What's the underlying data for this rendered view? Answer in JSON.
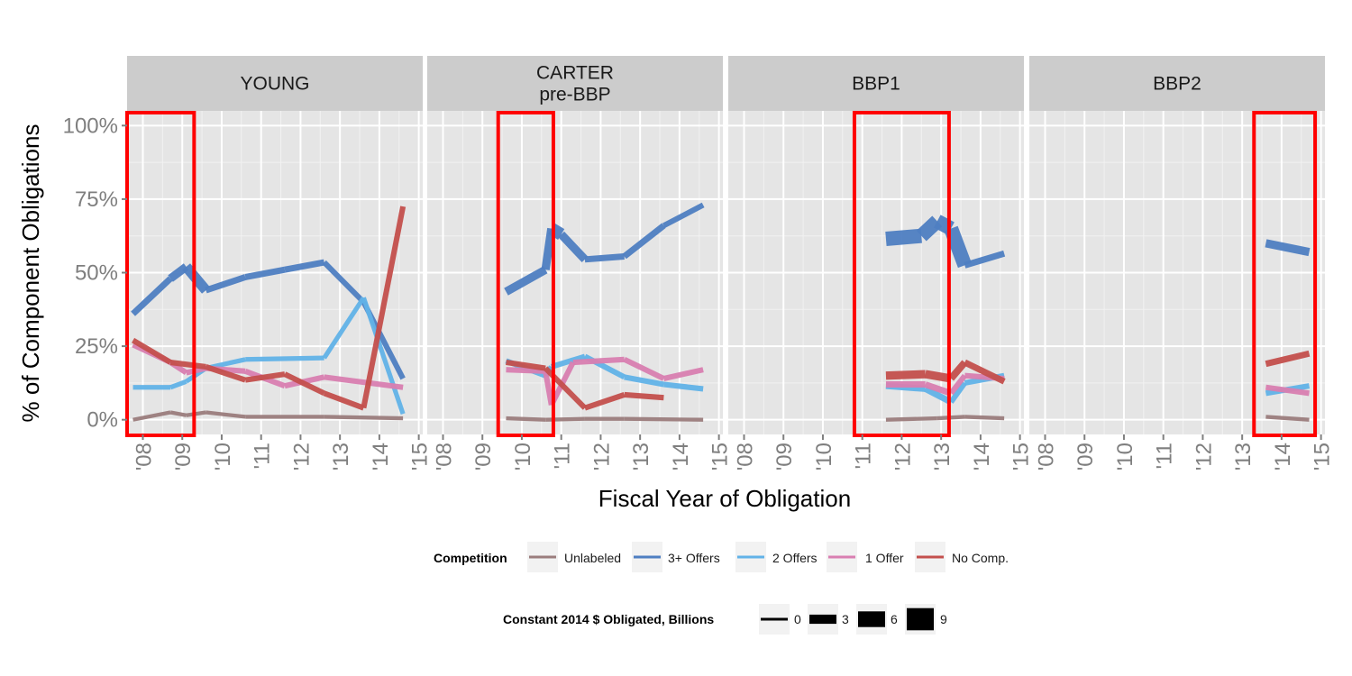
{
  "chart_data": {
    "type": "line",
    "ylabel": "% of Component Obligations",
    "xlabel": "Fiscal Year of Obligation",
    "y_ticks": [
      "0%",
      "25%",
      "50%",
      "75%",
      "100%"
    ],
    "y_tick_values": [
      0,
      25,
      50,
      75,
      100
    ],
    "ylim": [
      -5,
      105
    ],
    "x_ticks": [
      "'08",
      "'09",
      "'10",
      "'11",
      "'12",
      "'13",
      "'14",
      "'15"
    ],
    "x_tick_values": [
      2008,
      2009,
      2010,
      2011,
      2012,
      2013,
      2014,
      2015
    ],
    "xlim": [
      2007.6,
      2015.1
    ],
    "grid": true,
    "legend_placement": "bottom",
    "colors": {
      "Unlabeled": "#9b7d7d",
      "3+ Offers": "#4f7fc2",
      "2 Offers": "#62b3e8",
      "1 Offer": "#d97fb1",
      "No Comp.": "#c4504d",
      "highlight": "#ff0000",
      "panel_bg": "#e5e5e5",
      "strip_bg": "#cccccc"
    },
    "legend_competition": {
      "title": "Competition",
      "entries": [
        "Unlabeled",
        "3+ Offers",
        "2 Offers",
        "1 Offer",
        "No Comp."
      ]
    },
    "legend_size": {
      "title": "Constant 2014 $ Obligated, Billions",
      "entries": [
        "0",
        "3",
        "6",
        "9"
      ],
      "values": [
        0,
        3,
        6,
        9
      ]
    },
    "panels": [
      {
        "label_lines": [
          "YOUNG"
        ],
        "highlight_x": [
          2007.6,
          2009.3
        ],
        "series": [
          {
            "name": "Unlabeled",
            "points": [
              [
                2007.75,
                0,
                0.4
              ],
              [
                2008.7,
                2.5,
                0.4
              ],
              [
                2009.1,
                1.5,
                0.4
              ],
              [
                2009.6,
                2.5,
                0.4
              ],
              [
                2010.6,
                1,
                0.4
              ],
              [
                2012.6,
                1,
                0.4
              ],
              [
                2014.6,
                0.5,
                0.4
              ]
            ]
          },
          {
            "name": "3+ Offers",
            "points": [
              [
                2007.75,
                36,
                1.0
              ],
              [
                2008.7,
                48,
                1.5
              ],
              [
                2009.1,
                52,
                2.0
              ],
              [
                2009.6,
                44,
                1.0
              ],
              [
                2010.6,
                48.5,
                1.0
              ],
              [
                2011.6,
                51,
                1.0
              ],
              [
                2012.6,
                53.5,
                0.8
              ],
              [
                2013.6,
                40,
                0.8
              ],
              [
                2014.6,
                14,
                0.6
              ]
            ]
          },
          {
            "name": "2 Offers",
            "points": [
              [
                2007.75,
                11,
                0.6
              ],
              [
                2008.7,
                11,
                0.6
              ],
              [
                2009.1,
                13,
                0.6
              ],
              [
                2009.6,
                17.5,
                0.6
              ],
              [
                2010.6,
                20.5,
                0.6
              ],
              [
                2012.6,
                21,
                0.6
              ],
              [
                2013.6,
                41.5,
                0.6
              ],
              [
                2014.6,
                2,
                0.6
              ]
            ]
          },
          {
            "name": "1 Offer",
            "points": [
              [
                2007.75,
                25.5,
                0.8
              ],
              [
                2008.7,
                19.5,
                0.8
              ],
              [
                2009.1,
                16,
                0.8
              ],
              [
                2009.6,
                17.5,
                0.8
              ],
              [
                2010.6,
                16.5,
                0.8
              ],
              [
                2011.6,
                11.5,
                0.8
              ],
              [
                2012.6,
                14.5,
                0.8
              ],
              [
                2014.6,
                11,
                0.6
              ]
            ]
          },
          {
            "name": "No Comp.",
            "points": [
              [
                2007.75,
                27,
                0.8
              ],
              [
                2008.7,
                19.5,
                0.8
              ],
              [
                2009.6,
                18,
                0.8
              ],
              [
                2010.6,
                13.5,
                0.8
              ],
              [
                2011.6,
                15.5,
                0.8
              ],
              [
                2012.6,
                9,
                0.8
              ],
              [
                2013.6,
                4,
                0.8
              ],
              [
                2014.6,
                72.5,
                0.6
              ]
            ]
          }
        ]
      },
      {
        "label_lines": [
          "CARTER",
          "pre-BBP"
        ],
        "highlight_x": [
          2009.4,
          2010.8
        ],
        "series": [
          {
            "name": "Unlabeled",
            "points": [
              [
                2009.6,
                0.5,
                0.4
              ],
              [
                2010.6,
                0,
                0.4
              ],
              [
                2011.6,
                0.3,
                0.4
              ],
              [
                2012.6,
                0.3,
                0.4
              ],
              [
                2014.6,
                0,
                0.4
              ]
            ]
          },
          {
            "name": "3+ Offers",
            "points": [
              [
                2009.6,
                43.5,
                1.5
              ],
              [
                2010.6,
                51,
                1.5
              ],
              [
                2010.75,
                65,
                2.5
              ],
              [
                2011.0,
                63,
                1.5
              ],
              [
                2011.6,
                54.5,
                1.0
              ],
              [
                2012.6,
                55.5,
                1.0
              ],
              [
                2013.6,
                66,
                0.8
              ],
              [
                2014.6,
                73,
                0.8
              ]
            ]
          },
          {
            "name": "2 Offers",
            "points": [
              [
                2009.6,
                20,
                0.8
              ],
              [
                2010.6,
                15,
                0.8
              ],
              [
                2010.75,
                18,
                0.8
              ],
              [
                2011.6,
                21.5,
                0.8
              ],
              [
                2012.6,
                14.5,
                0.8
              ],
              [
                2013.6,
                12,
                0.8
              ],
              [
                2014.6,
                10.5,
                0.6
              ]
            ]
          },
          {
            "name": "1 Offer",
            "points": [
              [
                2009.6,
                17,
                0.8
              ],
              [
                2010.6,
                16.5,
                0.8
              ],
              [
                2010.75,
                5,
                0.8
              ],
              [
                2011.3,
                19.5,
                0.8
              ],
              [
                2012.6,
                20.5,
                0.8
              ],
              [
                2013.6,
                14,
                0.8
              ],
              [
                2014.6,
                17,
                0.8
              ]
            ]
          },
          {
            "name": "No Comp.",
            "points": [
              [
                2009.6,
                19.5,
                0.8
              ],
              [
                2010.6,
                17.5,
                0.8
              ],
              [
                2011.6,
                4,
                0.8
              ],
              [
                2012.6,
                8.5,
                0.8
              ],
              [
                2013.6,
                7.5,
                0.8
              ]
            ]
          }
        ]
      },
      {
        "label_lines": [
          "BBP1"
        ],
        "highlight_x": [
          2010.8,
          2013.2
        ],
        "series": [
          {
            "name": "Unlabeled",
            "points": [
              [
                2011.6,
                0,
                0.4
              ],
              [
                2012.9,
                0.5,
                0.4
              ],
              [
                2013.6,
                1,
                0.4
              ],
              [
                2014.6,
                0.5,
                0.4
              ]
            ]
          },
          {
            "name": "3+ Offers",
            "points": [
              [
                2011.6,
                61.5,
                3.0
              ],
              [
                2012.5,
                62.5,
                3.0
              ],
              [
                2012.9,
                67.5,
                3.0
              ],
              [
                2013.25,
                65,
                3.0
              ],
              [
                2013.6,
                52.5,
                1.0
              ],
              [
                2014.6,
                56.5,
                0.8
              ]
            ]
          },
          {
            "name": "2 Offers",
            "points": [
              [
                2011.6,
                11.5,
                1.0
              ],
              [
                2012.6,
                10.5,
                1.0
              ],
              [
                2013.25,
                6,
                0.8
              ],
              [
                2013.6,
                12.5,
                0.8
              ],
              [
                2014.6,
                15,
                0.6
              ]
            ]
          },
          {
            "name": "1 Offer",
            "points": [
              [
                2011.6,
                12,
                1.0
              ],
              [
                2012.6,
                12,
                1.0
              ],
              [
                2013.25,
                9,
                0.8
              ],
              [
                2013.6,
                15,
                0.8
              ],
              [
                2014.6,
                14,
                0.8
              ]
            ]
          },
          {
            "name": "No Comp.",
            "points": [
              [
                2011.6,
                15,
                1.5
              ],
              [
                2012.6,
                15.5,
                1.5
              ],
              [
                2013.25,
                14,
                1.2
              ],
              [
                2013.6,
                19.5,
                1.0
              ],
              [
                2014.6,
                13,
                0.8
              ]
            ]
          }
        ]
      },
      {
        "label_lines": [
          "BBP2"
        ],
        "highlight_x": [
          2013.3,
          2014.85
        ],
        "series": [
          {
            "name": "Unlabeled",
            "points": [
              [
                2013.6,
                1,
                0.4
              ],
              [
                2014.7,
                0,
                0.4
              ]
            ]
          },
          {
            "name": "3+ Offers",
            "points": [
              [
                2013.6,
                60,
                1.5
              ],
              [
                2014.7,
                57,
                1.5
              ]
            ]
          },
          {
            "name": "2 Offers",
            "points": [
              [
                2013.6,
                9,
                0.8
              ],
              [
                2014.7,
                11.5,
                0.8
              ]
            ]
          },
          {
            "name": "1 Offer",
            "points": [
              [
                2013.6,
                11,
                0.8
              ],
              [
                2014.7,
                9,
                0.8
              ]
            ]
          },
          {
            "name": "No Comp.",
            "points": [
              [
                2013.6,
                19,
                1.0
              ],
              [
                2014.7,
                22.5,
                1.0
              ]
            ]
          }
        ]
      }
    ]
  }
}
